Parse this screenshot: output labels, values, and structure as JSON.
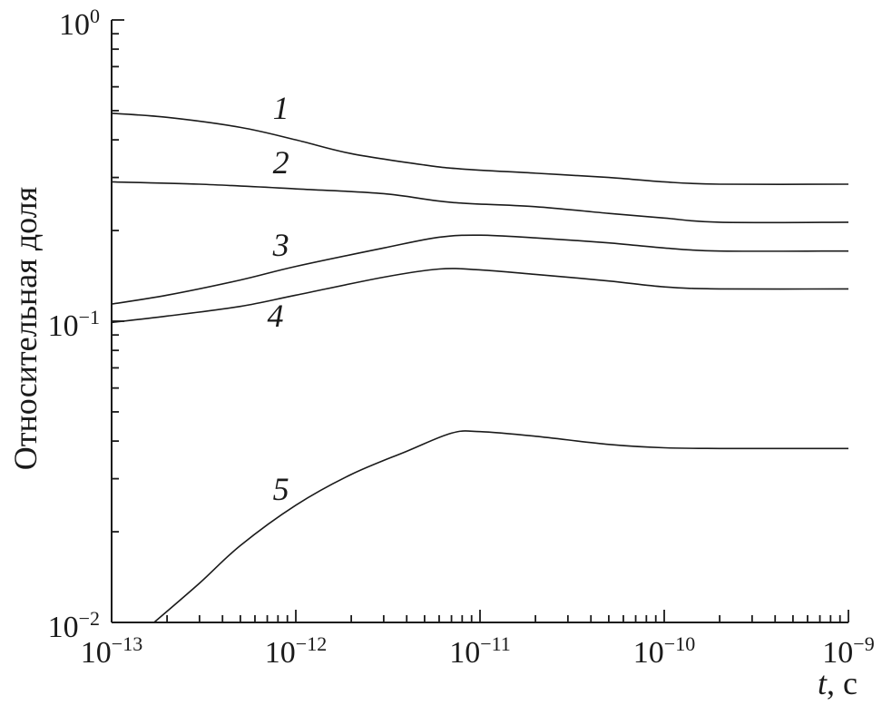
{
  "chart_data": {
    "type": "line",
    "title": "",
    "xlabel_italic": "t",
    "xlabel_unit": ", с",
    "ylabel": "Относительная доля",
    "xscale": "log",
    "yscale": "log",
    "xlim": [
      1e-13,
      1e-09
    ],
    "ylim": [
      0.01,
      1
    ],
    "grid": false,
    "x_ticks": [
      {
        "base": "10",
        "exp": "−13",
        "value": 1e-13
      },
      {
        "base": "10",
        "exp": "−12",
        "value": 1e-12
      },
      {
        "base": "10",
        "exp": "−11",
        "value": 1e-11
      },
      {
        "base": "10",
        "exp": "−10",
        "value": 1e-10
      },
      {
        "base": "10",
        "exp": "−9",
        "value": 1e-09
      }
    ],
    "y_ticks": [
      {
        "base": "10",
        "exp": "0",
        "value": 1
      },
      {
        "base": "10",
        "exp": "−1",
        "value": 0.1
      },
      {
        "base": "10",
        "exp": "−2",
        "value": 0.01
      }
    ],
    "series": [
      {
        "name": "1",
        "label_at": [
          7.5e-13,
          0.47
        ],
        "points": [
          [
            1e-13,
            0.49
          ],
          [
            2e-13,
            0.475
          ],
          [
            5e-13,
            0.44
          ],
          [
            1e-12,
            0.4
          ],
          [
            2e-12,
            0.36
          ],
          [
            5e-12,
            0.33
          ],
          [
            8e-12,
            0.32
          ],
          [
            2e-11,
            0.31
          ],
          [
            5e-11,
            0.3
          ],
          [
            1e-10,
            0.29
          ],
          [
            2e-10,
            0.285
          ],
          [
            1e-09,
            0.285
          ]
        ]
      },
      {
        "name": "2",
        "label_at": [
          7.5e-13,
          0.31
        ],
        "points": [
          [
            1e-13,
            0.29
          ],
          [
            3e-13,
            0.285
          ],
          [
            1e-12,
            0.275
          ],
          [
            3e-12,
            0.265
          ],
          [
            7e-12,
            0.248
          ],
          [
            2e-11,
            0.24
          ],
          [
            5e-11,
            0.228
          ],
          [
            1e-10,
            0.22
          ],
          [
            2e-10,
            0.213
          ],
          [
            1e-09,
            0.213
          ]
        ]
      },
      {
        "name": "3",
        "label_at": [
          7.5e-13,
          0.165
        ],
        "points": [
          [
            1e-13,
            0.114
          ],
          [
            2e-13,
            0.122
          ],
          [
            5e-13,
            0.137
          ],
          [
            1e-12,
            0.152
          ],
          [
            3e-12,
            0.175
          ],
          [
            6e-12,
            0.19
          ],
          [
            1e-11,
            0.193
          ],
          [
            2e-11,
            0.189
          ],
          [
            5e-11,
            0.182
          ],
          [
            1e-10,
            0.175
          ],
          [
            2e-10,
            0.171
          ],
          [
            1e-09,
            0.171
          ]
        ]
      },
      {
        "name": "4",
        "label_at": [
          7e-13,
          0.096
        ],
        "points": [
          [
            1e-13,
            0.099
          ],
          [
            2e-13,
            0.104
          ],
          [
            5e-13,
            0.112
          ],
          [
            1e-12,
            0.122
          ],
          [
            3e-12,
            0.14
          ],
          [
            6e-12,
            0.149
          ],
          [
            1e-11,
            0.148
          ],
          [
            2e-11,
            0.143
          ],
          [
            5e-11,
            0.136
          ],
          [
            1e-10,
            0.13
          ],
          [
            2e-10,
            0.128
          ],
          [
            1e-09,
            0.128
          ]
        ]
      },
      {
        "name": "5",
        "label_at": [
          7.5e-13,
          0.0255
        ],
        "points": [
          [
            1.7e-13,
            0.01
          ],
          [
            3e-13,
            0.0135
          ],
          [
            5e-13,
            0.018
          ],
          [
            1e-12,
            0.0245
          ],
          [
            2e-12,
            0.031
          ],
          [
            4e-12,
            0.037
          ],
          [
            7e-12,
            0.0425
          ],
          [
            1e-11,
            0.043
          ],
          [
            2e-11,
            0.0415
          ],
          [
            5e-11,
            0.039
          ],
          [
            1e-10,
            0.038
          ],
          [
            2e-10,
            0.0378
          ],
          [
            1e-09,
            0.0378
          ]
        ]
      }
    ]
  }
}
